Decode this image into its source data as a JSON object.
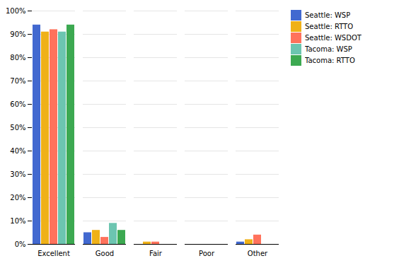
{
  "chart_data": {
    "type": "bar",
    "categories": [
      "Excellent",
      "Good",
      "Fair",
      "Poor",
      "Other"
    ],
    "series": [
      {
        "name": "Seattle: WSP",
        "values": [
          94,
          5,
          0,
          0,
          1
        ]
      },
      {
        "name": "Seattle: RTTO",
        "values": [
          91,
          6,
          1,
          0,
          2
        ]
      },
      {
        "name": "Seattle: WSDOT",
        "values": [
          92,
          3,
          1,
          0,
          4
        ]
      },
      {
        "name": "Tacoma: WSP",
        "values": [
          91,
          9,
          0,
          0,
          0
        ]
      },
      {
        "name": "Tacoma: RTTO",
        "values": [
          94,
          6,
          0,
          0,
          0
        ]
      }
    ],
    "ylim": [
      0,
      100
    ],
    "yticks": [
      {
        "value": 0,
        "label": "0%"
      },
      {
        "value": 10,
        "label": "10%"
      },
      {
        "value": 20,
        "label": "20%"
      },
      {
        "value": 30,
        "label": "30%"
      },
      {
        "value": 40,
        "label": "40%"
      },
      {
        "value": 50,
        "label": "50%"
      },
      {
        "value": 60,
        "label": "60%"
      },
      {
        "value": 70,
        "label": "70%"
      },
      {
        "value": 80,
        "label": "80%"
      },
      {
        "value": 90,
        "label": "90%"
      },
      {
        "value": 100,
        "label": "100%"
      }
    ],
    "grid": true,
    "legend": "right"
  }
}
